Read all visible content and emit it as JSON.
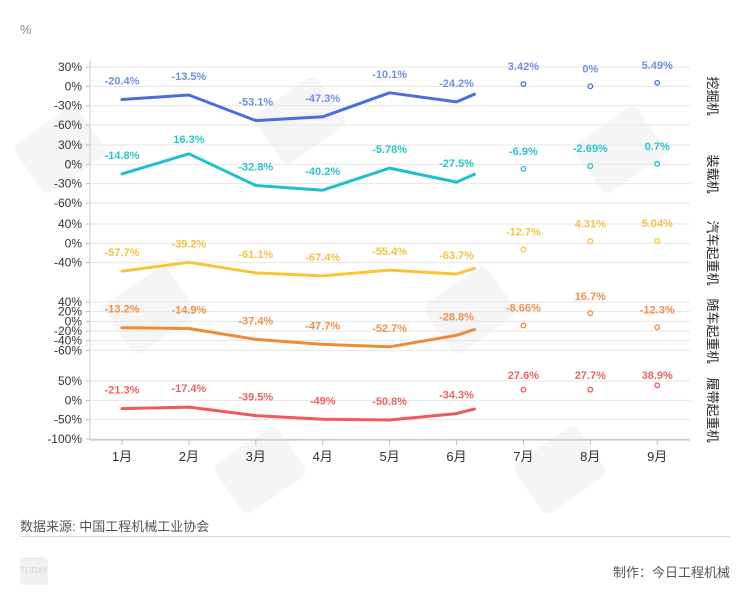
{
  "unit_label": "%",
  "source": "数据来源: 中国工程机械工业协会",
  "credit": "制作：今日工程机械",
  "watermark_icon": "today-logo-watermark",
  "chart_data": {
    "type": "line",
    "categories": [
      "1月",
      "2月",
      "3月",
      "4月",
      "5月",
      "6月",
      "7月",
      "8月",
      "9月"
    ],
    "panels": [
      {
        "name": "挖掘机",
        "color": "#4a6ee0",
        "label_color": "#6f8fe6",
        "ylim": [
          -60,
          30
        ],
        "yticks": [
          30,
          0,
          -30,
          -60
        ],
        "ytick_labels": [
          "30%",
          "0%",
          "-30%",
          "-60%"
        ],
        "values": [
          -20.4,
          -13.5,
          -53.1,
          -47.3,
          -10.1,
          -24.2,
          3.42,
          0,
          5.49
        ],
        "labels": [
          "-20.4%",
          "-13.5%",
          "-53.1%",
          "-47.3%",
          "-10.1%",
          "-24.2%",
          "3.42%",
          "0%",
          "5.49%"
        ]
      },
      {
        "name": "装载机",
        "color": "#1fbfd0",
        "label_color": "#2cc3cf",
        "ylim": [
          -60,
          30
        ],
        "yticks": [
          30,
          0,
          -30,
          -60
        ],
        "ytick_labels": [
          "30%",
          "0%",
          "-30%",
          "-60%"
        ],
        "values": [
          -14.8,
          16.3,
          -32.8,
          -40.2,
          -5.78,
          -27.5,
          -6.9,
          -2.69,
          0.7
        ],
        "labels": [
          "-14.8%",
          "16.3%",
          "-32.8%",
          "-40.2%",
          "-5.78%",
          "-27.5%",
          "-6.9%",
          "-2.69%",
          "0.7%"
        ]
      },
      {
        "name": "汽车起重机",
        "color": "#f7c53a",
        "label_color": "#f2c247",
        "ylim": [
          -80,
          40
        ],
        "yticks": [
          40,
          0,
          -40
        ],
        "ytick_labels": [
          "40%",
          "0%",
          "-40%"
        ],
        "values": [
          -57.7,
          -39.2,
          -61.1,
          -67.4,
          -55.4,
          -63.7,
          -12.7,
          4.31,
          5.04
        ],
        "labels": [
          "-57.7%",
          "-39.2%",
          "-61.1%",
          "-67.4%",
          "-55.4%",
          "-63.7%",
          "-12.7%",
          "4.31%",
          "5.04%"
        ]
      },
      {
        "name": "随车起重机",
        "color": "#f08a35",
        "label_color": "#f0914a",
        "ylim": [
          -80,
          40
        ],
        "yticks": [
          40,
          20,
          0,
          -20,
          -40,
          -60
        ],
        "ytick_labels": [
          "40%",
          "20%",
          "0%",
          "-20%",
          "-40%",
          "-60%"
        ],
        "values": [
          -13.2,
          -14.9,
          -37.4,
          -47.7,
          -52.7,
          -28.8,
          -8.66,
          16.7,
          -12.3
        ],
        "labels": [
          "-13.2%",
          "-14.9%",
          "-37.4%",
          "-47.7%",
          "-52.7%",
          "-28.8%",
          "-8.66%",
          "16.7%",
          "-12.3%"
        ]
      },
      {
        "name": "履带起重机",
        "color": "#ef5a5a",
        "label_color": "#ee6464",
        "ylim": [
          -100,
          50
        ],
        "yticks": [
          50,
          0,
          -50,
          -100
        ],
        "ytick_labels": [
          "50%",
          "0%",
          "-50%",
          "-100%"
        ],
        "values": [
          -21.3,
          -17.4,
          -39.5,
          -49,
          -50.8,
          -34.3,
          27.6,
          27.7,
          38.9
        ],
        "labels": [
          "-21.3%",
          "-17.4%",
          "-39.5%",
          "-49%",
          "-50.8%",
          "-34.3%",
          "27.6%",
          "27.7%",
          "38.9%"
        ]
      }
    ],
    "line_months": 6,
    "grid": true
  }
}
